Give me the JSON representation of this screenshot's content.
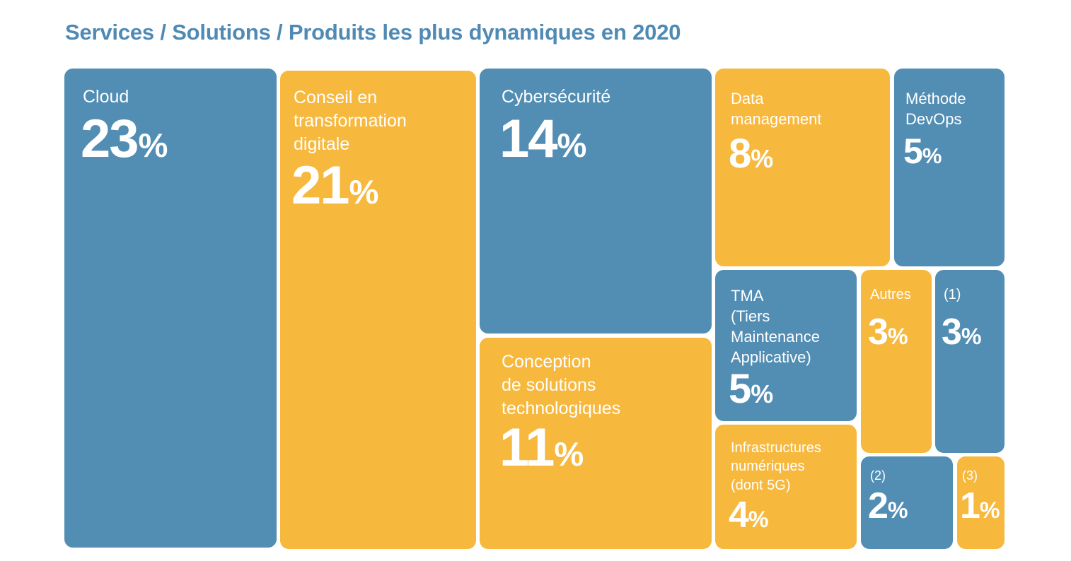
{
  "title": "Services / Solutions / Produits les plus dynamiques en 2020",
  "colors": {
    "blue": "#528db3",
    "yellow": "#f7b83e",
    "title": "#4f8ab4"
  },
  "chart_data": {
    "type": "treemap",
    "title": "Services / Solutions / Produits les plus dynamiques en 2020",
    "unit": "%",
    "items": [
      {
        "label": "Cloud",
        "value": 23,
        "color": "blue"
      },
      {
        "label": "Conseil en\ntransformation\ndigitale",
        "value": 21,
        "color": "yellow"
      },
      {
        "label": "Cybersécurité",
        "value": 14,
        "color": "blue"
      },
      {
        "label": "Conception\nde solutions\ntechnologiques",
        "value": 11,
        "color": "yellow"
      },
      {
        "label": "Data\nmanagement",
        "value": 8,
        "color": "yellow"
      },
      {
        "label": "Méthode\nDevOps",
        "value": 5,
        "color": "blue"
      },
      {
        "label": "TMA\n(Tiers\nMaintenance\nApplicative)",
        "value": 5,
        "color": "blue"
      },
      {
        "label": "Autres",
        "value": 3,
        "color": "yellow"
      },
      {
        "label": "(1)",
        "value": 3,
        "color": "blue"
      },
      {
        "label": "Infrastructures\nnumériques\n(dont 5G)",
        "value": 4,
        "color": "yellow"
      },
      {
        "label": "(2)",
        "value": 2,
        "color": "blue"
      },
      {
        "label": "(3)",
        "value": 1,
        "color": "yellow"
      }
    ]
  }
}
